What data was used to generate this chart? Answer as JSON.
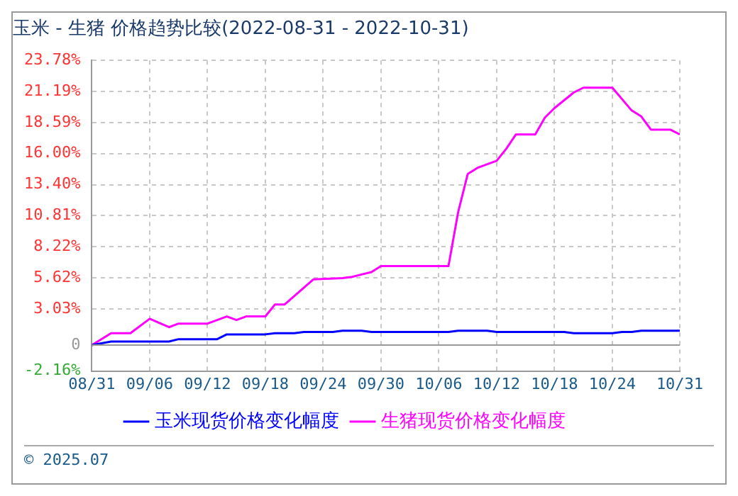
{
  "chart_data": {
    "type": "line",
    "title": "玉米 - 生猪 价格趋势比较(2022-08-31 - 2022-10-31)",
    "annotations": [
      "© 2025.07"
    ],
    "xlim": [
      "2022-08-31",
      "2022-10-31"
    ],
    "xticks": [
      {
        "value": "2022-08-31",
        "label": "08/31"
      },
      {
        "value": "2022-09-06",
        "label": "09/06"
      },
      {
        "value": "2022-09-12",
        "label": "09/12"
      },
      {
        "value": "2022-09-18",
        "label": "09/18"
      },
      {
        "value": "2022-09-24",
        "label": "09/24"
      },
      {
        "value": "2022-09-30",
        "label": "09/30"
      },
      {
        "value": "2022-10-06",
        "label": "10/06"
      },
      {
        "value": "2022-10-12",
        "label": "10/12"
      },
      {
        "value": "2022-10-18",
        "label": "10/18"
      },
      {
        "value": "2022-10-24",
        "label": "10/24"
      },
      {
        "value": "2022-10-31",
        "label": "10/31"
      }
    ],
    "ylim": [
      -2.16,
      23.78
    ],
    "yticks": [
      {
        "value": -2.16,
        "label": "-2.16%"
      },
      {
        "value": 0,
        "label": "0"
      },
      {
        "value": 3.03,
        "label": "3.03%"
      },
      {
        "value": 5.62,
        "label": "5.62%"
      },
      {
        "value": 8.22,
        "label": "8.22%"
      },
      {
        "value": 10.81,
        "label": "10.81%"
      },
      {
        "value": 13.4,
        "label": "13.40%"
      },
      {
        "value": 16,
        "label": "16.00%"
      },
      {
        "value": 18.59,
        "label": "18.59%"
      },
      {
        "value": 21.19,
        "label": "21.19%"
      },
      {
        "value": 23.78,
        "label": "23.78%"
      }
    ],
    "ref_lines": [
      {
        "axis": "y",
        "value": 0,
        "color": "#999999"
      }
    ],
    "grid": true,
    "legend": "bottom",
    "marker": "none",
    "line_style": "solid",
    "series": [
      {
        "name": "玉米现货价格变化幅度",
        "color": "#0000ff",
        "x": [
          "2022-08-31",
          "2022-09-02",
          "2022-09-08",
          "2022-09-09",
          "2022-09-13",
          "2022-09-14",
          "2022-09-18",
          "2022-09-19",
          "2022-09-21",
          "2022-09-22",
          "2022-09-25",
          "2022-09-26",
          "2022-09-28",
          "2022-09-29",
          "2022-10-07",
          "2022-10-08",
          "2022-10-11",
          "2022-10-12",
          "2022-10-19",
          "2022-10-20",
          "2022-10-24",
          "2022-10-25",
          "2022-10-26",
          "2022-10-27",
          "2022-10-31"
        ],
        "values": [
          0,
          0.3,
          0.3,
          0.5,
          0.5,
          0.9,
          0.9,
          1.0,
          1.0,
          1.1,
          1.1,
          1.2,
          1.2,
          1.1,
          1.1,
          1.2,
          1.2,
          1.1,
          1.1,
          1.0,
          1.0,
          1.1,
          1.1,
          1.2,
          1.2
        ]
      },
      {
        "name": "生猪现货价格变化幅度",
        "color": "#ff00ff",
        "x": [
          "2022-08-31",
          "2022-09-02",
          "2022-09-04",
          "2022-09-06",
          "2022-09-08",
          "2022-09-09",
          "2022-09-12",
          "2022-09-14",
          "2022-09-15",
          "2022-09-16",
          "2022-09-18",
          "2022-09-19",
          "2022-09-20",
          "2022-09-23",
          "2022-09-26",
          "2022-09-27",
          "2022-09-29",
          "2022-09-30",
          "2022-10-07",
          "2022-10-08",
          "2022-10-09",
          "2022-10-10",
          "2022-10-12",
          "2022-10-13",
          "2022-10-14",
          "2022-10-16",
          "2022-10-17",
          "2022-10-18",
          "2022-10-20",
          "2022-10-21",
          "2022-10-24",
          "2022-10-26",
          "2022-10-27",
          "2022-10-28",
          "2022-10-30",
          "2022-10-31"
        ],
        "values": [
          0,
          1.0,
          1.0,
          2.2,
          1.5,
          1.8,
          1.8,
          2.4,
          2.1,
          2.4,
          2.4,
          3.4,
          3.4,
          5.5,
          5.6,
          5.7,
          6.1,
          6.6,
          6.6,
          11.1,
          14.3,
          14.8,
          15.4,
          16.4,
          17.6,
          17.6,
          19.0,
          19.8,
          21.1,
          21.5,
          21.5,
          19.6,
          19.1,
          18.0,
          18.0,
          17.6
        ]
      }
    ]
  }
}
